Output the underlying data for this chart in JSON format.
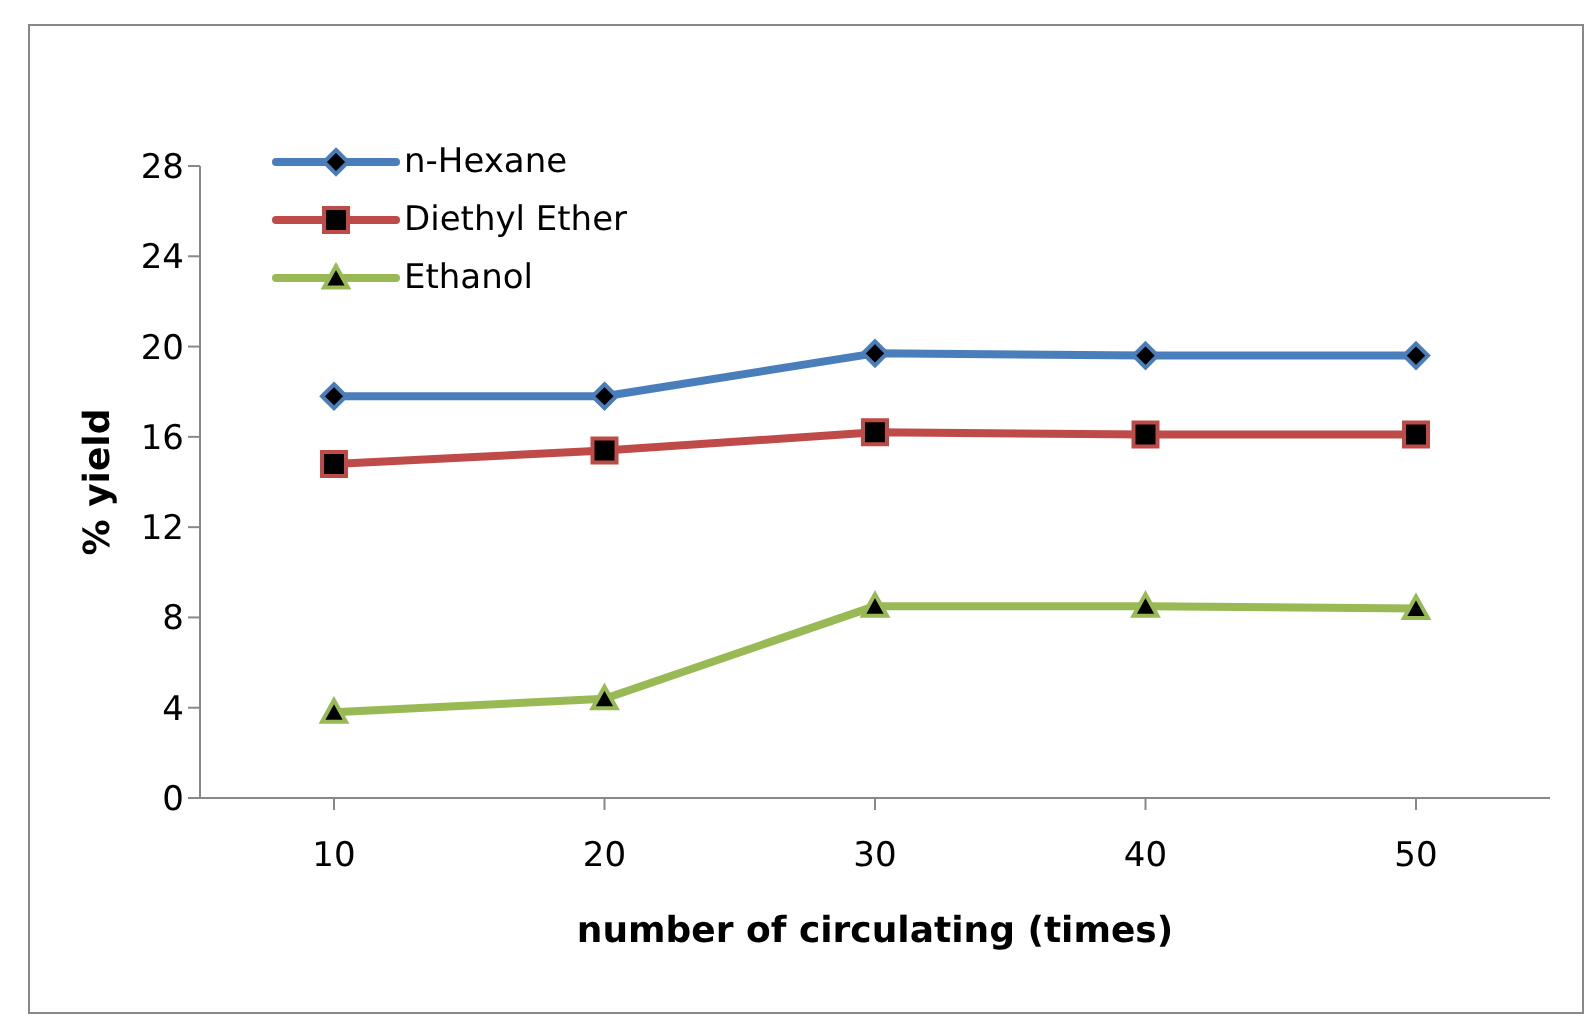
{
  "chart_data": {
    "type": "line",
    "xlabel": "number of circulating (times)",
    "ylabel": "% yield",
    "categories": [
      "10",
      "20",
      "30",
      "40",
      "50"
    ],
    "ylim": [
      0,
      28
    ],
    "yticks": [
      0,
      4,
      8,
      12,
      16,
      20,
      24,
      28
    ],
    "grid": false,
    "legend": "top left",
    "series": [
      {
        "name": "n-Hexane",
        "color": "#4a7ebb",
        "marker": "diamond",
        "values": [
          17.8,
          17.8,
          19.7,
          19.6,
          19.6
        ]
      },
      {
        "name": "Diethyl Ether",
        "color": "#be4b48",
        "marker": "square",
        "values": [
          14.8,
          15.4,
          16.2,
          16.1,
          16.1
        ]
      },
      {
        "name": "Ethanol",
        "color": "#98b954",
        "marker": "triangle",
        "values": [
          3.8,
          4.4,
          8.5,
          8.5,
          8.4
        ]
      }
    ]
  }
}
